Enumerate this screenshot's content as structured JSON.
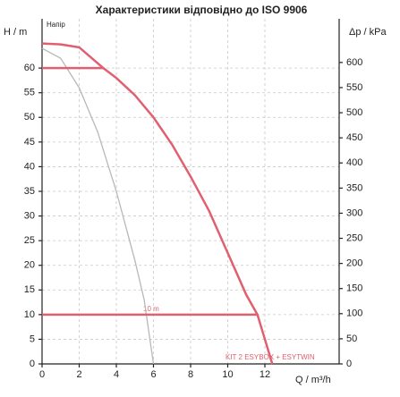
{
  "chart_data": {
    "type": "line",
    "title": "Характеристики відповідно до ISO 9906",
    "y_label": "H / m",
    "y2_label": "Δp / kPa",
    "x_label": "Q / m³/h",
    "annotations": [
      "Напір",
      "10 m",
      "KIT 2 ESYBOX + ESYTWIN"
    ],
    "xlim": [
      0,
      16
    ],
    "xticks": [
      0,
      2,
      4,
      6,
      8,
      10,
      12
    ],
    "ylim": [
      0,
      70
    ],
    "yticks": [
      0,
      5,
      10,
      15,
      20,
      25,
      30,
      35,
      40,
      45,
      50,
      55,
      60
    ],
    "y2lim": [
      0,
      687
    ],
    "y2ticks": [
      0,
      50,
      100,
      150,
      200,
      250,
      300,
      350,
      400,
      450,
      500,
      550,
      600
    ],
    "grid": true,
    "series": [
      {
        "color": "#b8b8b8",
        "x": [
          0,
          1,
          2,
          3,
          4,
          5,
          5.5,
          6
        ],
        "values": [
          64,
          62,
          56,
          47,
          35,
          21,
          13,
          0
        ]
      },
      {
        "color": "#e06070",
        "x": [
          0,
          1,
          2,
          3.3,
          4,
          5,
          6,
          7,
          8,
          9,
          10,
          11,
          11.6,
          12,
          12.4
        ],
        "values": [
          65,
          64.8,
          64.2,
          60,
          58,
          54.5,
          50,
          44.5,
          38,
          31,
          22.5,
          14,
          10,
          5,
          0
        ]
      },
      {
        "color": "#e06070",
        "x": [
          0,
          3.3
        ],
        "values": [
          60,
          60
        ]
      },
      {
        "color": "#e06070",
        "x": [
          0,
          11.6
        ],
        "values": [
          10,
          10
        ]
      }
    ]
  }
}
